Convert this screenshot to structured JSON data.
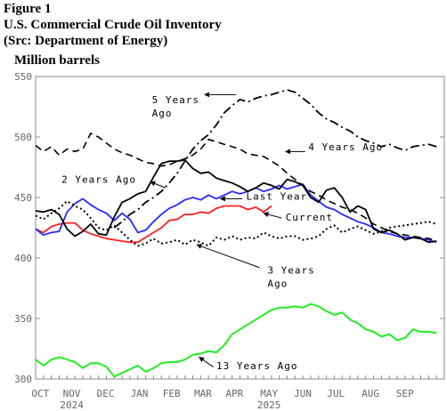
{
  "header": {
    "figure": "Figure 1",
    "title": "U.S. Commercial Crude Oil Inventory",
    "source": "(Src: Department of Energy)",
    "units": "Million barrels"
  },
  "chart_data": {
    "type": "line",
    "ylabel": "Million barrels",
    "ylim": [
      300,
      550
    ],
    "yticks": [
      300,
      350,
      400,
      450,
      500,
      550
    ],
    "xlim": [
      0,
      52
    ],
    "months": [
      "OCT",
      "NOV",
      "DEC",
      "JAN",
      "FEB",
      "MAR",
      "APR",
      "MAY",
      "JUN",
      "JUL",
      "AUG",
      "SEP"
    ],
    "month_positions": [
      0.6,
      4.6,
      8.9,
      13.2,
      17.3,
      21.3,
      25.3,
      29.7,
      34.0,
      38.2,
      42.6,
      47.0
    ],
    "years": [
      {
        "label": "2024",
        "x": 4.6
      },
      {
        "label": "2025",
        "x": 29.7
      }
    ],
    "grid": false,
    "series": [
      {
        "name": "Current",
        "color": "#ff2020",
        "dash": "",
        "width": 1.8,
        "x": [
          0,
          1,
          2,
          3,
          4,
          5,
          6,
          7,
          8,
          9,
          10,
          11,
          12,
          13,
          14,
          15,
          16,
          17,
          18,
          19,
          20,
          21,
          22,
          23,
          24,
          25,
          26,
          27,
          28,
          29,
          30
        ],
        "y": [
          424,
          421,
          426,
          428,
          429,
          429,
          423,
          420,
          418,
          416,
          415,
          414,
          413,
          413,
          417,
          421,
          425,
          431,
          432,
          436,
          436,
          438,
          437,
          441,
          443,
          443,
          443,
          440,
          442,
          438,
          443
        ]
      },
      {
        "name": "Last Year",
        "color": "#2a2aff",
        "dash": "",
        "width": 1.8,
        "x": [
          0,
          1,
          2,
          3,
          4,
          5,
          6,
          7,
          8,
          9,
          10,
          11,
          12,
          13,
          14,
          15,
          16,
          17,
          18,
          19,
          20,
          21,
          22,
          23,
          24,
          25,
          26,
          27,
          28,
          29,
          30,
          31,
          32,
          33,
          34,
          35,
          36,
          37,
          38,
          39,
          40,
          41,
          42,
          43,
          44,
          45,
          46,
          47,
          48,
          49,
          50,
          51
        ],
        "y": [
          424,
          419,
          421,
          422,
          438,
          445,
          449,
          444,
          440,
          437,
          431,
          437,
          432,
          421,
          423,
          430,
          436,
          441,
          444,
          448,
          450,
          448,
          452,
          449,
          452,
          455,
          453,
          455,
          458,
          455,
          457,
          460,
          457,
          459,
          461,
          452,
          447,
          442,
          440,
          436,
          433,
          430,
          428,
          425,
          421,
          420,
          418,
          417,
          417,
          416,
          415,
          413
        ]
      },
      {
        "name": "2 Years Ago",
        "color": "#000000",
        "dash": "",
        "width": 1.8,
        "x": [
          0,
          1,
          2,
          3,
          4,
          5,
          6,
          7,
          8,
          9,
          10,
          11,
          12,
          13,
          14,
          15,
          16,
          17,
          18,
          19,
          20,
          21,
          22,
          23,
          24,
          25,
          26,
          27,
          28,
          29,
          30,
          31,
          32,
          33,
          34,
          35,
          36,
          37,
          38,
          39,
          40,
          41,
          42,
          43,
          44,
          45,
          46,
          47,
          48,
          49,
          50,
          51
        ],
        "y": [
          439,
          438,
          440,
          436,
          424,
          418,
          422,
          428,
          420,
          419,
          434,
          446,
          449,
          453,
          455,
          467,
          478,
          480,
          480,
          481,
          474,
          470,
          471,
          466,
          464,
          462,
          459,
          455,
          458,
          462,
          460,
          457,
          465,
          463,
          460,
          450,
          446,
          456,
          458,
          450,
          438,
          443,
          440,
          424,
          421,
          423,
          420,
          415,
          417,
          416,
          413,
          414
        ]
      },
      {
        "name": "3 Years Ago",
        "color": "#000000",
        "dash": "2,3",
        "width": 2,
        "x": [
          0,
          1,
          2,
          3,
          4,
          5,
          6,
          7,
          8,
          9,
          10,
          11,
          12,
          13,
          14,
          15,
          16,
          17,
          18,
          19,
          20,
          21,
          22,
          23,
          24,
          25,
          26,
          27,
          28,
          29,
          30,
          31,
          32,
          33,
          34,
          35,
          36,
          37,
          38,
          39,
          40,
          41,
          42,
          43,
          44,
          45,
          46,
          47,
          48,
          49,
          50,
          51
        ],
        "y": [
          435,
          432,
          437,
          441,
          447,
          443,
          440,
          433,
          425,
          423,
          427,
          421,
          415,
          410,
          412,
          416,
          412,
          413,
          415,
          411,
          415,
          413,
          410,
          417,
          415,
          418,
          415,
          417,
          416,
          421,
          418,
          416,
          418,
          418,
          415,
          416,
          418,
          424,
          427,
          421,
          424,
          426,
          423,
          420,
          422,
          425,
          426,
          427,
          428,
          429,
          430,
          428
        ]
      },
      {
        "name": "4 Years Ago",
        "color": "#000000",
        "dash": "8,5",
        "width": 1.6,
        "x": [
          0,
          1,
          2,
          3,
          4,
          5,
          6,
          7,
          8,
          9,
          10,
          11,
          12,
          13,
          14,
          15,
          16,
          17,
          18,
          19,
          20,
          21,
          22,
          23,
          24,
          25,
          26,
          27,
          28,
          29,
          30,
          31,
          32,
          33,
          34,
          35,
          36,
          37,
          38,
          39,
          40,
          41,
          42,
          43,
          44,
          45,
          46,
          47,
          48,
          49,
          50,
          51
        ],
        "y": [
          493,
          488,
          492,
          485,
          490,
          488,
          490,
          503,
          500,
          495,
          490,
          487,
          485,
          482,
          479,
          478,
          476,
          477,
          480,
          482,
          485,
          490,
          498,
          496,
          494,
          492,
          490,
          486,
          485,
          484,
          480,
          476,
          470,
          465,
          460,
          455,
          452,
          448,
          445,
          442,
          440,
          437,
          433,
          428,
          425,
          422,
          420,
          419,
          418,
          417,
          416,
          415
        ]
      },
      {
        "name": "5 Years Ago",
        "color": "#000000",
        "dash": "10,4,2,4",
        "width": 1.8,
        "x": [
          10,
          11,
          12,
          13,
          14,
          15,
          16,
          17,
          18,
          19,
          20,
          21,
          22,
          23,
          24,
          25,
          26,
          27,
          28,
          29,
          30,
          31,
          32,
          33,
          34,
          35,
          36,
          37,
          38,
          39,
          40,
          41,
          42,
          43,
          44,
          45,
          46,
          47,
          48,
          49,
          50,
          51
        ],
        "y": [
          425,
          430,
          436,
          440,
          446,
          450,
          455,
          462,
          470,
          480,
          490,
          497,
          502,
          510,
          520,
          526,
          531,
          529,
          532,
          534,
          535,
          537,
          539,
          537,
          532,
          527,
          520,
          515,
          512,
          508,
          505,
          500,
          497,
          495,
          492,
          494,
          491,
          489,
          492,
          493,
          494,
          492
        ]
      },
      {
        "name": "13 Years Ago",
        "color": "#22ee22",
        "dash": "",
        "width": 2,
        "x": [
          0,
          1,
          2,
          3,
          4,
          5,
          6,
          7,
          8,
          9,
          10,
          11,
          12,
          13,
          14,
          15,
          16,
          17,
          18,
          19,
          20,
          21,
          22,
          23,
          24,
          25,
          26,
          27,
          28,
          29,
          30,
          31,
          32,
          33,
          34,
          35,
          36,
          37,
          38,
          39,
          40,
          41,
          42,
          43,
          44,
          45,
          46,
          47,
          48,
          49,
          50,
          51
        ],
        "y": [
          316,
          311,
          316,
          318,
          316,
          314,
          309,
          313,
          313,
          310,
          302,
          305,
          308,
          311,
          306,
          309,
          313,
          314,
          314,
          316,
          320,
          321,
          323,
          322,
          328,
          337,
          341,
          345,
          349,
          353,
          357,
          359,
          359,
          360,
          359,
          362,
          360,
          356,
          353,
          355,
          349,
          346,
          341,
          339,
          335,
          337,
          332,
          334,
          341,
          339,
          339,
          338
        ]
      }
    ],
    "annotations": [
      {
        "series": "5 Years Ago",
        "lines": [
          "5 Years",
          "Ago"
        ],
        "tx": 14.8,
        "ty": 528,
        "ax": 21.5,
        "ay": 535,
        "bx": 25.5,
        "by": 535
      },
      {
        "series": "4 Years Ago",
        "lines": [
          "4 Years Ago"
        ],
        "tx": 34.7,
        "ty": 489,
        "ax": 31.8,
        "ay": 488,
        "bx": 34.3,
        "by": 488
      },
      {
        "series": "2 Years Ago",
        "lines": [
          "2 Years Ago"
        ],
        "tx": 3.3,
        "ty": 462,
        "ax": 14.6,
        "ay": 463,
        "bx": 16.5,
        "by": 458
      },
      {
        "series": "Last Year",
        "lines": [
          "Last Year"
        ],
        "tx": 26.8,
        "ty": 448,
        "ax": 23.5,
        "ay": 449,
        "bx": 26.3,
        "by": 449
      },
      {
        "series": "Current",
        "lines": [
          "Current"
        ],
        "tx": 31.8,
        "ty": 431,
        "ax": 29.0,
        "ay": 437,
        "bx": 31.3,
        "by": 433
      },
      {
        "series": "3 Years Ago",
        "lines": [
          "3 Years",
          "Ago"
        ],
        "tx": 29.5,
        "ty": 387,
        "ax": 20.5,
        "ay": 411,
        "bx": 28.5,
        "by": 392
      },
      {
        "series": "13 Years Ago",
        "lines": [
          "13 Years Ago"
        ],
        "tx": 23.0,
        "ty": 308,
        "ax": 20.8,
        "ay": 318,
        "bx": 22.6,
        "by": 310
      }
    ]
  }
}
